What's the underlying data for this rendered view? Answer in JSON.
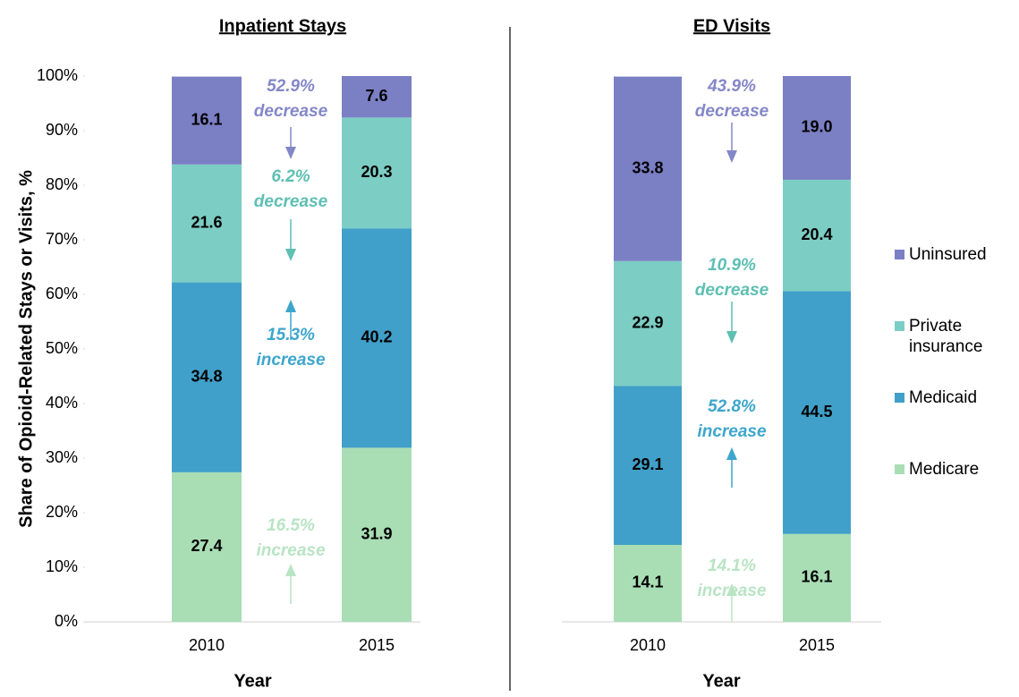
{
  "chart_data": [
    {
      "type": "stacked_bar",
      "title": "Inpatient Stays",
      "y_label": "Share of Opioid-Related Stays or Visits, %",
      "x_label": "Year",
      "categories": [
        "2010",
        "2015"
      ],
      "series": [
        {
          "color": "#a9deb5",
          "values": [
            27.4,
            31.9
          ],
          "value_labels": [
            "27.4",
            "31.9"
          ]
        },
        {
          "color": "#40a0c9",
          "values": [
            34.8,
            40.2
          ],
          "value_labels": [
            "34.8",
            "40.2"
          ]
        },
        {
          "color": "#7ccdc4",
          "values": [
            21.6,
            20.3
          ],
          "value_labels": [
            "21.6",
            "20.3"
          ]
        },
        {
          "color": "#7b7fc4",
          "values": [
            16.1,
            7.6
          ],
          "value_labels": [
            "16.1",
            "7.6"
          ]
        }
      ],
      "ylim": [
        0,
        100
      ],
      "yticks": [
        {
          "value": 0,
          "label": "0%"
        },
        {
          "value": 10,
          "label": "10%"
        },
        {
          "value": 20,
          "label": "20%"
        },
        {
          "value": 30,
          "label": "30%"
        },
        {
          "value": 40,
          "label": "40%"
        },
        {
          "value": 50,
          "label": "50%"
        },
        {
          "value": 60,
          "label": "60%"
        },
        {
          "value": 70,
          "label": "70%"
        },
        {
          "value": 80,
          "label": "80%"
        },
        {
          "value": 90,
          "label": "90%"
        },
        {
          "value": 100,
          "label": "100%"
        }
      ],
      "annotations": [
        {
          "lines": [
            "52.9%",
            "decrease"
          ],
          "color": "#8487c7",
          "arrow": "down"
        },
        {
          "lines": [
            "6.2%",
            "decrease"
          ],
          "color": "#5ebfb3",
          "arrow": "down"
        },
        {
          "lines": [
            "15.3%",
            "increase"
          ],
          "color": "#3ea6cc",
          "arrow": "up"
        },
        {
          "lines": [
            "16.5%",
            "increase"
          ],
          "color": "#b9e4c4",
          "arrow": "up"
        }
      ]
    },
    {
      "type": "stacked_bar",
      "title": "ED Visits",
      "x_label": "Year",
      "categories": [
        "2010",
        "2015"
      ],
      "series": [
        {
          "name": "Medicare",
          "color": "#a9deb5",
          "values": [
            14.1,
            16.1
          ],
          "value_labels": [
            "14.1",
            "16.1"
          ]
        },
        {
          "name": "Medicaid",
          "color": "#40a0c9",
          "values": [
            29.1,
            44.5
          ],
          "value_labels": [
            "29.1",
            "44.5"
          ]
        },
        {
          "name": "Private insurance",
          "color": "#7ccdc4",
          "values": [
            22.9,
            20.4
          ],
          "value_labels": [
            "22.9",
            "20.4"
          ]
        },
        {
          "name": "Uninsured",
          "color": "#7b7fc4",
          "values": [
            33.8,
            19.0
          ],
          "value_labels": [
            "33.8",
            "19.0"
          ]
        }
      ],
      "ylim": [
        0,
        100
      ],
      "legend": "right",
      "annotations": [
        {
          "lines": [
            "43.9%",
            "decrease"
          ],
          "color": "#8487c7",
          "arrow": "down"
        },
        {
          "lines": [
            "10.9%",
            "decrease"
          ],
          "color": "#5ebfb3",
          "arrow": "down"
        },
        {
          "lines": [
            "52.8%",
            "increase"
          ],
          "color": "#3ea6cc",
          "arrow": "up"
        },
        {
          "lines": [
            "14.1%",
            "increase"
          ],
          "color": "#b9e4c4",
          "arrow": "up"
        }
      ]
    }
  ]
}
